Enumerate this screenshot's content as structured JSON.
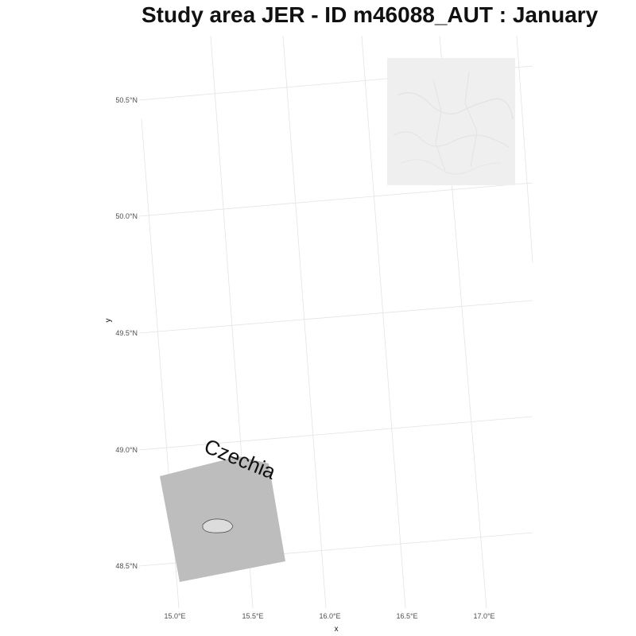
{
  "map": {
    "title": "Study area JER - ID m46088_AUT : January",
    "x_axis_title": "x",
    "y_axis_title": "y",
    "x_ticks": [
      "15.0°E",
      "15.5°E",
      "16.0°E",
      "16.5°E",
      "17.0°E"
    ],
    "y_ticks": [
      "50.5°N",
      "50.0°N",
      "49.5°N",
      "49.0°N",
      "48.5°N"
    ],
    "country_label": "Czechia",
    "colors": {
      "background": "#ffffff",
      "graticule": "#e3e3e3",
      "country_fill": "#bdbdbd",
      "lake_fill": "#dcdcdc",
      "hillshade": "#efefef"
    }
  }
}
